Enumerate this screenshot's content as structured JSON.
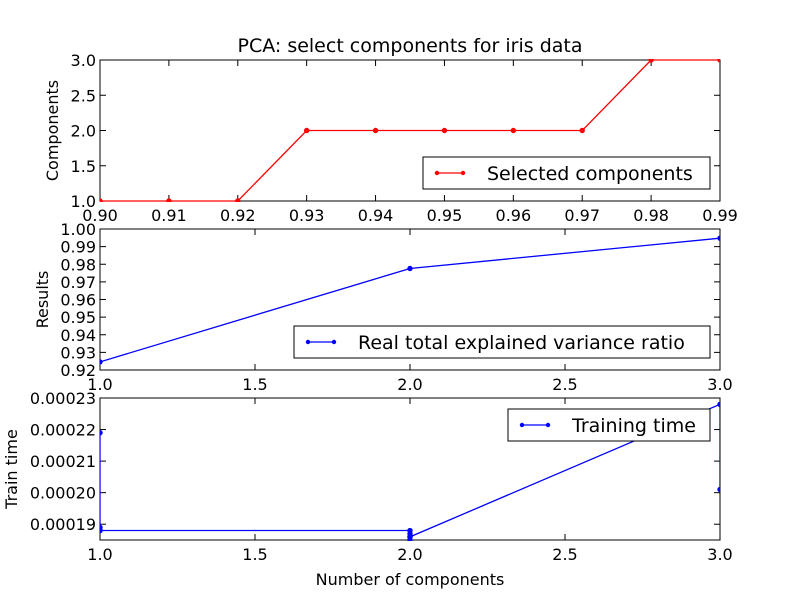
{
  "figure": {
    "title": "PCA: select components for iris data",
    "shared_xlabel": "Number of components"
  },
  "chart_data": [
    {
      "type": "line",
      "title": "PCA: select components for iris data",
      "xlabel": "",
      "ylabel": "Components",
      "xlim": [
        0.9,
        0.99
      ],
      "ylim": [
        1.0,
        3.0
      ],
      "xticks": [
        "0.90",
        "0.91",
        "0.92",
        "0.93",
        "0.94",
        "0.95",
        "0.96",
        "0.97",
        "0.98",
        "0.99"
      ],
      "yticks": [
        "1.0",
        "1.5",
        "2.0",
        "2.5",
        "3.0"
      ],
      "legend_position": "lower-right",
      "grid": false,
      "series": [
        {
          "name": "Selected components",
          "color": "#ff0000",
          "x": [
            0.9,
            0.91,
            0.92,
            0.93,
            0.94,
            0.95,
            0.96,
            0.97,
            0.98,
            0.99
          ],
          "y": [
            1,
            1,
            1,
            2,
            2,
            2,
            2,
            2,
            3,
            3
          ]
        }
      ]
    },
    {
      "type": "line",
      "xlabel": "",
      "ylabel": "Results",
      "xlim": [
        1.0,
        3.0
      ],
      "ylim": [
        0.92,
        1.0
      ],
      "xticks": [
        "1.0",
        "1.5",
        "2.0",
        "2.5",
        "3.0"
      ],
      "yticks": [
        "0.92",
        "0.93",
        "0.94",
        "0.95",
        "0.96",
        "0.97",
        "0.98",
        "0.99",
        "1.00"
      ],
      "legend_position": "lower-right",
      "grid": false,
      "series": [
        {
          "name": "Real total explained variance ratio",
          "color": "#0000ff",
          "x": [
            1,
            2,
            3
          ],
          "y": [
            0.9246,
            0.9776,
            0.9948
          ]
        }
      ]
    },
    {
      "type": "line",
      "xlabel": "Number of components",
      "ylabel": "Train time",
      "xlim": [
        1.0,
        3.0
      ],
      "ylim": [
        0.000185,
        0.00023
      ],
      "xticks": [
        "1.0",
        "1.5",
        "2.0",
        "2.5",
        "3.0"
      ],
      "yticks": [
        "0.00019",
        "0.00020",
        "0.00021",
        "0.00022",
        "0.00023"
      ],
      "ytick_values": [
        0.00019,
        0.0002,
        0.00021,
        0.00022,
        0.00023
      ],
      "legend_position": "top-right",
      "grid": false,
      "series": [
        {
          "name": "Training time",
          "color": "#0000ff",
          "x": [
            1,
            1,
            1,
            1,
            2,
            2,
            2,
            2,
            2,
            3,
            3
          ],
          "y": [
            0.000219,
            0.000189,
            0.000188,
            0.000188,
            0.000188,
            0.000187,
            0.000186,
            0.000185,
            0.000186,
            0.000228,
            0.000201
          ]
        }
      ]
    }
  ]
}
